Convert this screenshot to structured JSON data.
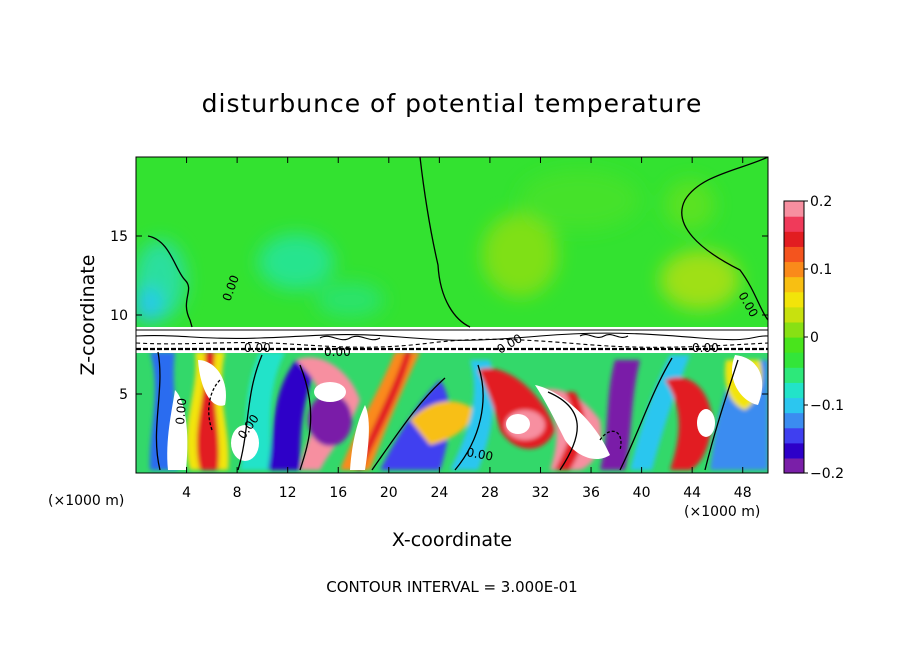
{
  "chart_data": {
    "type": "heatmap",
    "title": "disturbunce of potential temperature",
    "xlabel": "X-coordinate",
    "ylabel": "Z-coordinate",
    "x_unit": "(×1000 m)",
    "x_unit_right": "(×1000 m)",
    "footer": "CONTOUR INTERVAL = 3.000E-01",
    "xlim": [
      0,
      50
    ],
    "ylim": [
      0,
      20
    ],
    "x_ticks": [
      4,
      8,
      12,
      16,
      20,
      24,
      28,
      32,
      36,
      40,
      44,
      48
    ],
    "x_tick_labels": [
      "4",
      "8",
      "12",
      "16",
      "20",
      "24",
      "28",
      "32",
      "36",
      "40",
      "44",
      "48"
    ],
    "y_ticks": [
      5,
      10,
      15
    ],
    "y_tick_labels": [
      "5",
      "10",
      "15"
    ],
    "colorbar": {
      "min": -0.2,
      "max": 0.2,
      "ticks": [
        -0.2,
        -0.1,
        0,
        0.1,
        0.2
      ],
      "tick_labels": [
        "−0.2",
        "−0.1",
        "0",
        "0.1",
        "0.2"
      ],
      "colors": [
        "#7a1fa8",
        "#2d00c8",
        "#3f3ff0",
        "#3b8cf0",
        "#2cc6ef",
        "#22e3c9",
        "#2de87a",
        "#33e53a",
        "#49e41c",
        "#88e014",
        "#c8e10e",
        "#f2e40a",
        "#f8bf12",
        "#fa8a1a",
        "#f4541e",
        "#e21d21",
        "#f03a5a",
        "#f78fa0"
      ]
    },
    "contour_labels": [
      "0.00",
      "0.00",
      "0.00",
      "0.00",
      "0.00",
      "0.00",
      "0.00",
      "0.00",
      "0.00"
    ],
    "contour_interval": 0.3
  }
}
